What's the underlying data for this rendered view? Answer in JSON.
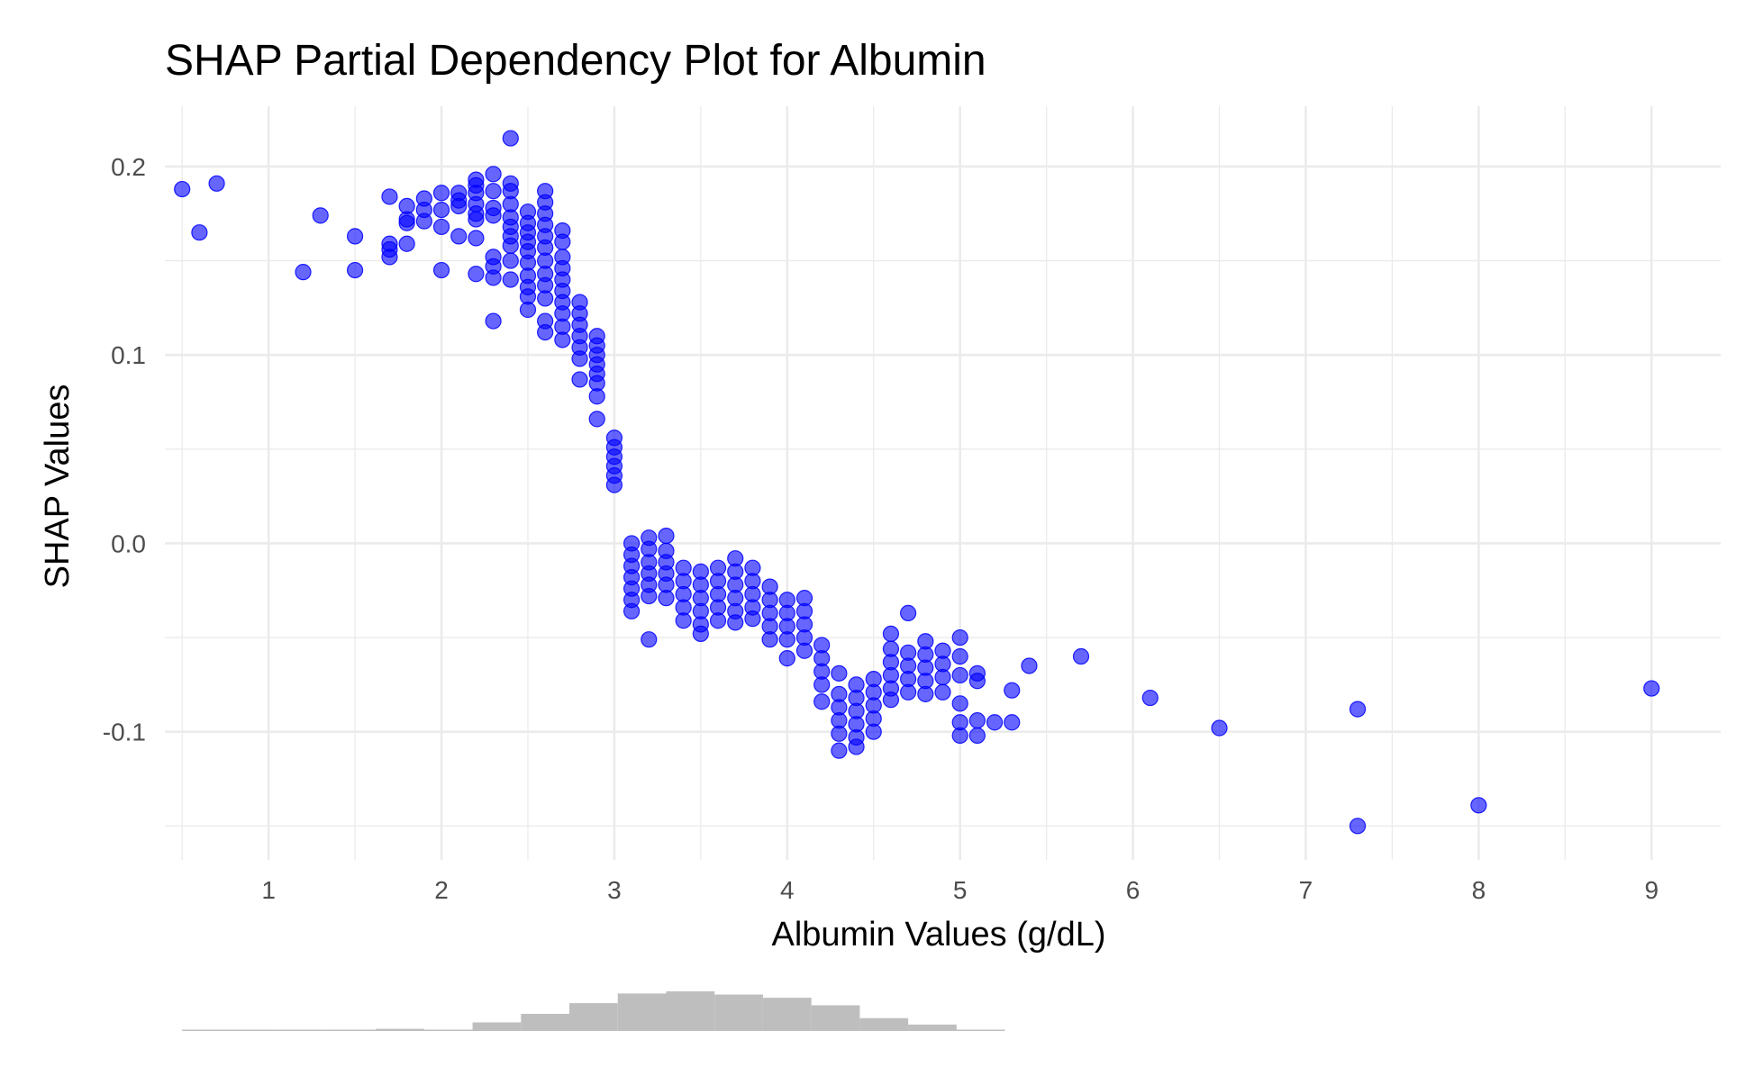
{
  "chart_data": {
    "type": "scatter",
    "title": "SHAP Partial Dependency Plot for Albumin",
    "xlabel": "Albumin Values (g/dL)",
    "ylabel": "SHAP Values",
    "xlim": [
      0.4,
      9.4
    ],
    "ylim": [
      -0.168,
      0.232
    ],
    "x_ticks": [
      1,
      2,
      3,
      4,
      5,
      6,
      7,
      8,
      9
    ],
    "x_tick_labels": [
      "1",
      "2",
      "3",
      "4",
      "5",
      "6",
      "7",
      "8",
      "9"
    ],
    "y_ticks": [
      0.2,
      0.1,
      0.0,
      -0.1
    ],
    "y_tick_labels": [
      "0.2",
      "0.1",
      "0.0",
      "-0.1"
    ],
    "grid": true,
    "point_color": "#0000ff",
    "point_opacity": 0.6,
    "points": [
      [
        0.5,
        0.188
      ],
      [
        0.6,
        0.165
      ],
      [
        0.7,
        0.191
      ],
      [
        1.2,
        0.144
      ],
      [
        1.3,
        0.174
      ],
      [
        1.5,
        0.145
      ],
      [
        1.5,
        0.163
      ],
      [
        1.7,
        0.184
      ],
      [
        1.7,
        0.159
      ],
      [
        1.7,
        0.156
      ],
      [
        1.7,
        0.152
      ],
      [
        1.8,
        0.179
      ],
      [
        1.8,
        0.172
      ],
      [
        1.8,
        0.17
      ],
      [
        1.8,
        0.159
      ],
      [
        1.9,
        0.183
      ],
      [
        1.9,
        0.177
      ],
      [
        1.9,
        0.171
      ],
      [
        2.0,
        0.186
      ],
      [
        2.0,
        0.177
      ],
      [
        2.0,
        0.168
      ],
      [
        2.0,
        0.145
      ],
      [
        2.1,
        0.186
      ],
      [
        2.1,
        0.182
      ],
      [
        2.1,
        0.179
      ],
      [
        2.1,
        0.163
      ],
      [
        2.2,
        0.193
      ],
      [
        2.2,
        0.19
      ],
      [
        2.2,
        0.186
      ],
      [
        2.2,
        0.18
      ],
      [
        2.2,
        0.175
      ],
      [
        2.2,
        0.172
      ],
      [
        2.2,
        0.162
      ],
      [
        2.2,
        0.143
      ],
      [
        2.3,
        0.196
      ],
      [
        2.3,
        0.187
      ],
      [
        2.3,
        0.178
      ],
      [
        2.3,
        0.174
      ],
      [
        2.3,
        0.152
      ],
      [
        2.3,
        0.147
      ],
      [
        2.3,
        0.141
      ],
      [
        2.3,
        0.118
      ],
      [
        2.4,
        0.215
      ],
      [
        2.4,
        0.191
      ],
      [
        2.4,
        0.187
      ],
      [
        2.4,
        0.18
      ],
      [
        2.4,
        0.173
      ],
      [
        2.4,
        0.168
      ],
      [
        2.4,
        0.163
      ],
      [
        2.4,
        0.158
      ],
      [
        2.4,
        0.15
      ],
      [
        2.4,
        0.14
      ],
      [
        2.5,
        0.176
      ],
      [
        2.5,
        0.17
      ],
      [
        2.5,
        0.165
      ],
      [
        2.5,
        0.16
      ],
      [
        2.5,
        0.155
      ],
      [
        2.5,
        0.149
      ],
      [
        2.5,
        0.142
      ],
      [
        2.5,
        0.136
      ],
      [
        2.5,
        0.131
      ],
      [
        2.5,
        0.124
      ],
      [
        2.6,
        0.187
      ],
      [
        2.6,
        0.181
      ],
      [
        2.6,
        0.175
      ],
      [
        2.6,
        0.169
      ],
      [
        2.6,
        0.163
      ],
      [
        2.6,
        0.157
      ],
      [
        2.6,
        0.15
      ],
      [
        2.6,
        0.143
      ],
      [
        2.6,
        0.137
      ],
      [
        2.6,
        0.13
      ],
      [
        2.6,
        0.118
      ],
      [
        2.6,
        0.112
      ],
      [
        2.7,
        0.166
      ],
      [
        2.7,
        0.16
      ],
      [
        2.7,
        0.152
      ],
      [
        2.7,
        0.146
      ],
      [
        2.7,
        0.14
      ],
      [
        2.7,
        0.134
      ],
      [
        2.7,
        0.128
      ],
      [
        2.7,
        0.122
      ],
      [
        2.7,
        0.115
      ],
      [
        2.7,
        0.108
      ],
      [
        2.8,
        0.128
      ],
      [
        2.8,
        0.122
      ],
      [
        2.8,
        0.116
      ],
      [
        2.8,
        0.11
      ],
      [
        2.8,
        0.104
      ],
      [
        2.8,
        0.098
      ],
      [
        2.8,
        0.087
      ],
      [
        2.9,
        0.11
      ],
      [
        2.9,
        0.105
      ],
      [
        2.9,
        0.1
      ],
      [
        2.9,
        0.095
      ],
      [
        2.9,
        0.09
      ],
      [
        2.9,
        0.085
      ],
      [
        2.9,
        0.078
      ],
      [
        2.9,
        0.066
      ],
      [
        3.0,
        0.056
      ],
      [
        3.0,
        0.051
      ],
      [
        3.0,
        0.046
      ],
      [
        3.0,
        0.041
      ],
      [
        3.0,
        0.036
      ],
      [
        3.0,
        0.031
      ],
      [
        3.1,
        0.0
      ],
      [
        3.1,
        -0.006
      ],
      [
        3.1,
        -0.012
      ],
      [
        3.1,
        -0.018
      ],
      [
        3.1,
        -0.024
      ],
      [
        3.1,
        -0.03
      ],
      [
        3.1,
        -0.036
      ],
      [
        3.2,
        0.003
      ],
      [
        3.2,
        -0.003
      ],
      [
        3.2,
        -0.01
      ],
      [
        3.2,
        -0.016
      ],
      [
        3.2,
        -0.022
      ],
      [
        3.2,
        -0.028
      ],
      [
        3.2,
        -0.051
      ],
      [
        3.3,
        0.004
      ],
      [
        3.3,
        -0.004
      ],
      [
        3.3,
        -0.01
      ],
      [
        3.3,
        -0.016
      ],
      [
        3.3,
        -0.022
      ],
      [
        3.3,
        -0.029
      ],
      [
        3.4,
        -0.013
      ],
      [
        3.4,
        -0.02
      ],
      [
        3.4,
        -0.027
      ],
      [
        3.4,
        -0.034
      ],
      [
        3.4,
        -0.041
      ],
      [
        3.5,
        -0.015
      ],
      [
        3.5,
        -0.022
      ],
      [
        3.5,
        -0.029
      ],
      [
        3.5,
        -0.036
      ],
      [
        3.5,
        -0.043
      ],
      [
        3.5,
        -0.048
      ],
      [
        3.6,
        -0.013
      ],
      [
        3.6,
        -0.02
      ],
      [
        3.6,
        -0.027
      ],
      [
        3.6,
        -0.034
      ],
      [
        3.6,
        -0.041
      ],
      [
        3.7,
        -0.008
      ],
      [
        3.7,
        -0.015
      ],
      [
        3.7,
        -0.022
      ],
      [
        3.7,
        -0.029
      ],
      [
        3.7,
        -0.036
      ],
      [
        3.7,
        -0.042
      ],
      [
        3.8,
        -0.013
      ],
      [
        3.8,
        -0.02
      ],
      [
        3.8,
        -0.027
      ],
      [
        3.8,
        -0.034
      ],
      [
        3.8,
        -0.04
      ],
      [
        3.9,
        -0.023
      ],
      [
        3.9,
        -0.03
      ],
      [
        3.9,
        -0.037
      ],
      [
        3.9,
        -0.044
      ],
      [
        3.9,
        -0.051
      ],
      [
        4.0,
        -0.03
      ],
      [
        4.0,
        -0.037
      ],
      [
        4.0,
        -0.044
      ],
      [
        4.0,
        -0.051
      ],
      [
        4.0,
        -0.061
      ],
      [
        4.1,
        -0.029
      ],
      [
        4.1,
        -0.036
      ],
      [
        4.1,
        -0.043
      ],
      [
        4.1,
        -0.05
      ],
      [
        4.1,
        -0.057
      ],
      [
        4.2,
        -0.054
      ],
      [
        4.2,
        -0.061
      ],
      [
        4.2,
        -0.068
      ],
      [
        4.2,
        -0.075
      ],
      [
        4.2,
        -0.084
      ],
      [
        4.3,
        -0.069
      ],
      [
        4.3,
        -0.08
      ],
      [
        4.3,
        -0.087
      ],
      [
        4.3,
        -0.094
      ],
      [
        4.3,
        -0.101
      ],
      [
        4.3,
        -0.11
      ],
      [
        4.4,
        -0.075
      ],
      [
        4.4,
        -0.082
      ],
      [
        4.4,
        -0.089
      ],
      [
        4.4,
        -0.096
      ],
      [
        4.4,
        -0.103
      ],
      [
        4.4,
        -0.108
      ],
      [
        4.5,
        -0.072
      ],
      [
        4.5,
        -0.079
      ],
      [
        4.5,
        -0.086
      ],
      [
        4.5,
        -0.093
      ],
      [
        4.5,
        -0.1
      ],
      [
        4.6,
        -0.048
      ],
      [
        4.6,
        -0.056
      ],
      [
        4.6,
        -0.063
      ],
      [
        4.6,
        -0.07
      ],
      [
        4.6,
        -0.077
      ],
      [
        4.6,
        -0.083
      ],
      [
        4.7,
        -0.037
      ],
      [
        4.7,
        -0.058
      ],
      [
        4.7,
        -0.065
      ],
      [
        4.7,
        -0.072
      ],
      [
        4.7,
        -0.079
      ],
      [
        4.8,
        -0.052
      ],
      [
        4.8,
        -0.059
      ],
      [
        4.8,
        -0.066
      ],
      [
        4.8,
        -0.073
      ],
      [
        4.8,
        -0.08
      ],
      [
        4.9,
        -0.057
      ],
      [
        4.9,
        -0.064
      ],
      [
        4.9,
        -0.071
      ],
      [
        4.9,
        -0.079
      ],
      [
        5.0,
        -0.05
      ],
      [
        5.0,
        -0.06
      ],
      [
        5.0,
        -0.07
      ],
      [
        5.0,
        -0.085
      ],
      [
        5.0,
        -0.095
      ],
      [
        5.0,
        -0.102
      ],
      [
        5.1,
        -0.069
      ],
      [
        5.1,
        -0.073
      ],
      [
        5.1,
        -0.094
      ],
      [
        5.1,
        -0.102
      ],
      [
        5.2,
        -0.095
      ],
      [
        5.3,
        -0.078
      ],
      [
        5.3,
        -0.095
      ],
      [
        5.4,
        -0.065
      ],
      [
        5.7,
        -0.06
      ],
      [
        6.1,
        -0.082
      ],
      [
        6.5,
        -0.098
      ],
      [
        7.3,
        -0.088
      ],
      [
        7.3,
        -0.15
      ],
      [
        8.0,
        -0.139
      ],
      [
        9.0,
        -0.077
      ]
    ],
    "marginal_histogram": {
      "bin_width": 0.28,
      "bins": [
        [
          0.5,
          1
        ],
        [
          0.78,
          0
        ],
        [
          1.06,
          0
        ],
        [
          1.34,
          0
        ],
        [
          1.62,
          2
        ],
        [
          1.9,
          1
        ],
        [
          2.18,
          8
        ],
        [
          2.46,
          16
        ],
        [
          2.74,
          26
        ],
        [
          3.02,
          35
        ],
        [
          3.3,
          37
        ],
        [
          3.58,
          34
        ],
        [
          3.86,
          31
        ],
        [
          4.14,
          24
        ],
        [
          4.42,
          12
        ],
        [
          4.7,
          6
        ],
        [
          4.98,
          1
        ]
      ],
      "color": "#bebebe"
    }
  }
}
